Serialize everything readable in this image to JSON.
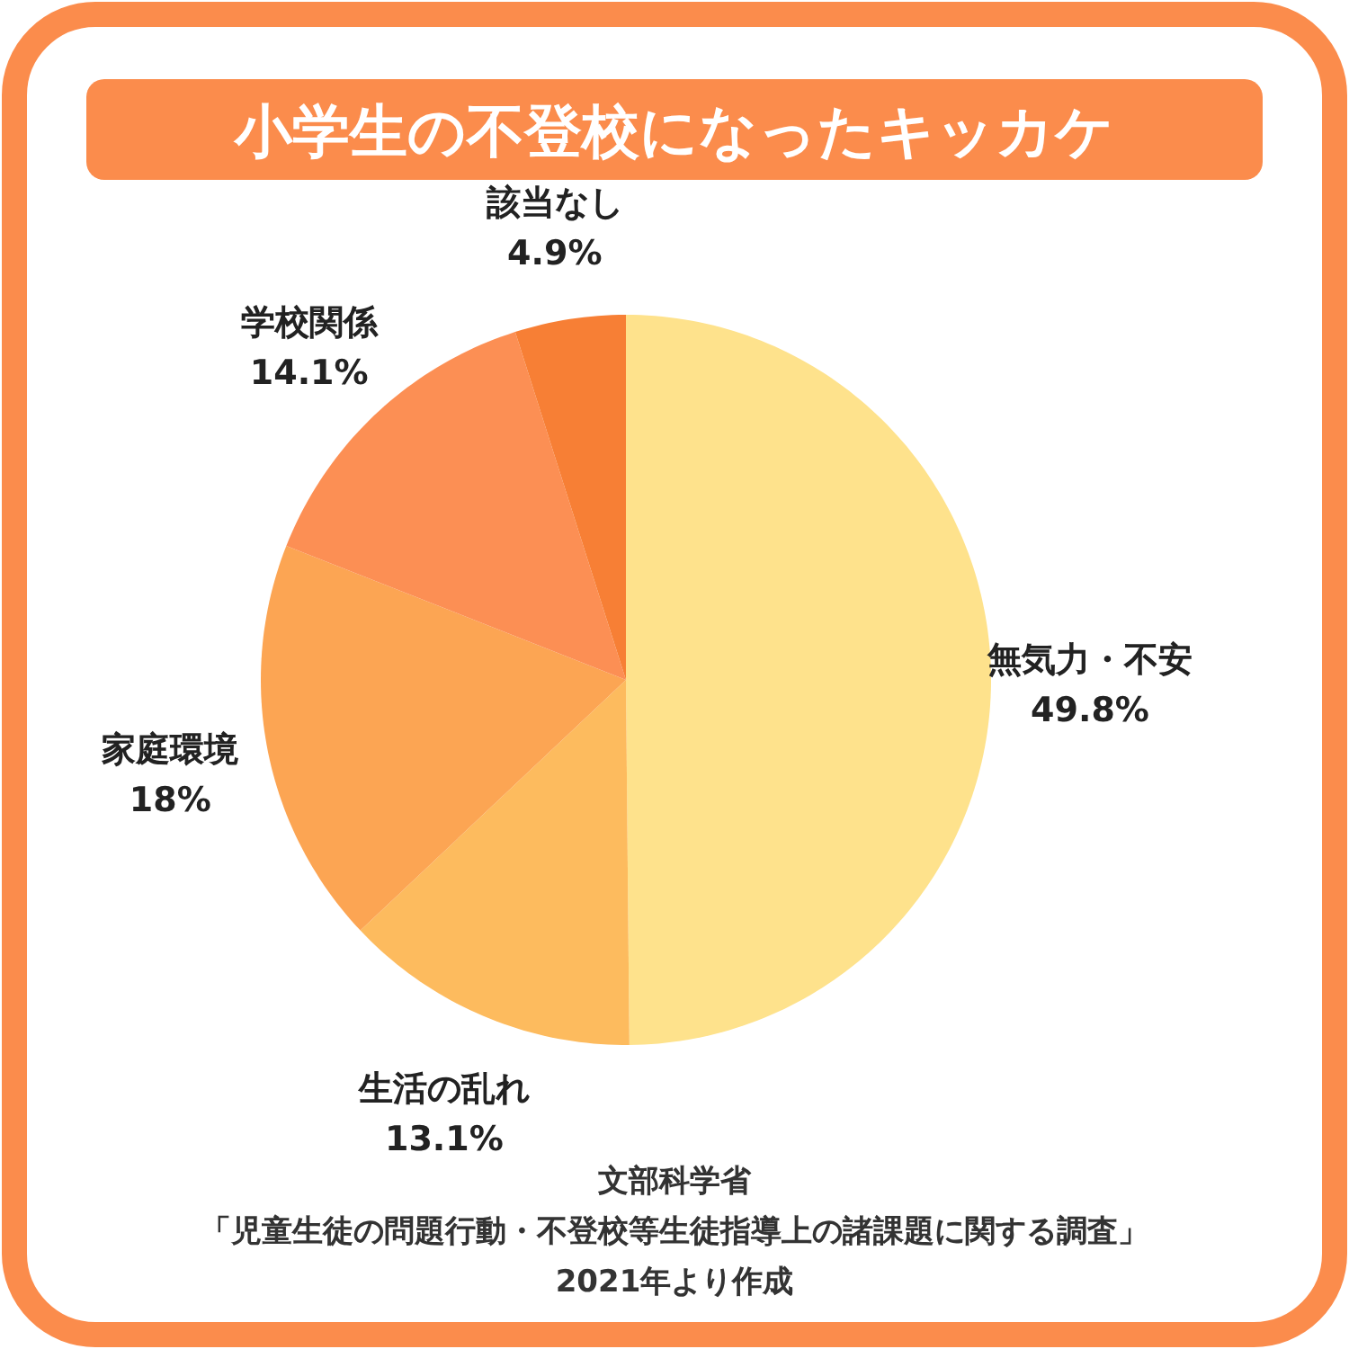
{
  "chart_data": {
    "type": "pie",
    "title": "小学生の不登校になったキッカケ",
    "categories": [
      "無気力・不安",
      "生活の乱れ",
      "家庭環境",
      "学校関係",
      "該当なし"
    ],
    "values": [
      49.8,
      13.1,
      18,
      14.1,
      4.9
    ],
    "colors": [
      "#fee28c",
      "#fdbb5e",
      "#fca553",
      "#fc8f54",
      "#f77f35"
    ],
    "value_labels": [
      "49.8%",
      "13.1%",
      "18%",
      "14.1%",
      "4.9%"
    ],
    "annotations": [
      "文部科学省",
      "「児童生徒の問題行動・不登校等生徒指導上の諸課題に関する調査」",
      "2021年より作成"
    ]
  }
}
